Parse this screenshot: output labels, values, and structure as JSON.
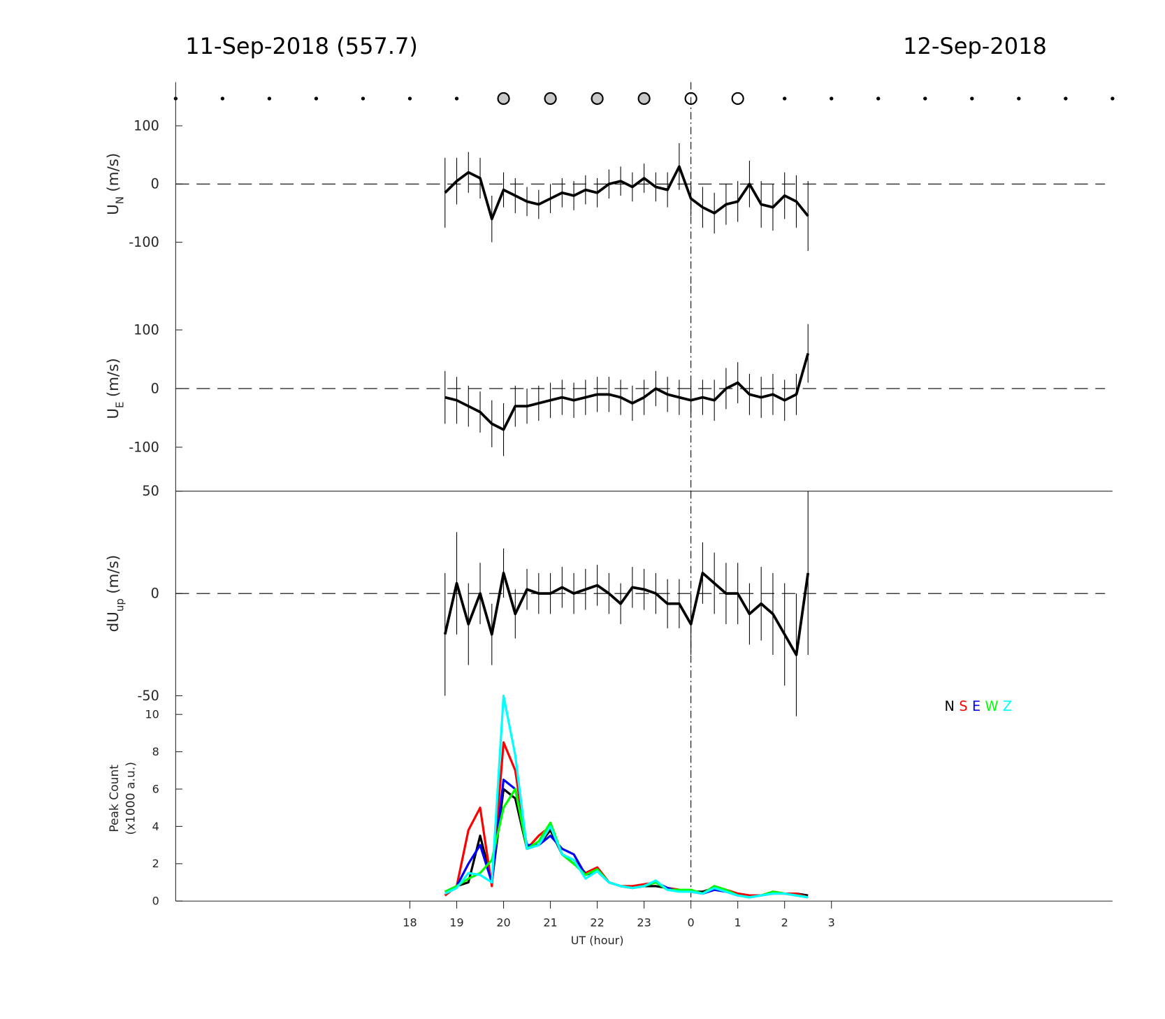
{
  "header": {
    "left": "11-Sep-2018 (557.7)",
    "right": "12-Sep-2018"
  },
  "sky_markers": {
    "x": [
      13,
      14,
      15,
      16,
      17,
      18,
      19,
      20,
      21,
      22,
      23,
      24,
      25,
      26,
      27,
      28,
      29,
      30,
      31,
      32,
      33
    ],
    "kind": [
      "dot",
      "dot",
      "dot",
      "dot",
      "dot",
      "dot",
      "dot",
      "gray",
      "gray",
      "gray",
      "gray",
      "open",
      "open",
      "dot",
      "dot",
      "dot",
      "dot",
      "dot",
      "dot",
      "dot",
      "dot"
    ]
  },
  "chart_data": [
    {
      "type": "errorbar-line",
      "ylabel": {
        "text": "U",
        "subscript": "N",
        "unit": "(m/s)"
      },
      "xlim": [
        13,
        33
      ],
      "ylim": [
        -175,
        175
      ],
      "yticks": [
        -100,
        0,
        100
      ],
      "ref_line": 0,
      "vline": 24,
      "x": [
        18.75,
        19,
        19.25,
        19.5,
        19.75,
        20,
        20.25,
        20.5,
        20.75,
        21,
        21.25,
        21.5,
        21.75,
        22,
        22.25,
        22.5,
        22.75,
        23,
        23.25,
        23.5,
        23.75,
        24,
        24.25,
        24.5,
        24.75,
        25,
        25.25,
        25.5,
        25.75,
        26,
        26.25,
        26.5
      ],
      "series": [
        {
          "color": "#000000",
          "values": [
            -15,
            5,
            20,
            10,
            -60,
            -10,
            -20,
            -30,
            -35,
            -25,
            -15,
            -20,
            -10,
            -15,
            0,
            5,
            -5,
            10,
            -5,
            -10,
            30,
            -25,
            -40,
            -50,
            -35,
            -30,
            0,
            -35,
            -40,
            -20,
            -30,
            -55
          ],
          "errors": [
            60,
            40,
            35,
            35,
            40,
            30,
            30,
            25,
            25,
            25,
            25,
            25,
            25,
            25,
            25,
            25,
            25,
            25,
            25,
            30,
            40,
            30,
            35,
            35,
            35,
            35,
            40,
            40,
            40,
            40,
            45,
            60
          ]
        }
      ]
    },
    {
      "type": "errorbar-line",
      "ylabel": {
        "text": "U",
        "subscript": "E",
        "unit": "(m/s)"
      },
      "xlim": [
        13,
        33
      ],
      "ylim": [
        -175,
        175
      ],
      "yticks": [
        -100,
        0,
        100
      ],
      "ref_line": 0,
      "vline": 24,
      "x": [
        18.75,
        19,
        19.25,
        19.5,
        19.75,
        20,
        20.25,
        20.5,
        20.75,
        21,
        21.25,
        21.5,
        21.75,
        22,
        22.25,
        22.5,
        22.75,
        23,
        23.25,
        23.5,
        23.75,
        24,
        24.25,
        24.5,
        24.75,
        25,
        25.25,
        25.5,
        25.75,
        26,
        26.25,
        26.5
      ],
      "series": [
        {
          "color": "#000000",
          "values": [
            -15,
            -20,
            -30,
            -40,
            -60,
            -70,
            -30,
            -30,
            -25,
            -20,
            -15,
            -20,
            -15,
            -10,
            -10,
            -15,
            -25,
            -15,
            0,
            -10,
            -15,
            -20,
            -15,
            -20,
            0,
            10,
            -10,
            -15,
            -10,
            -20,
            -10,
            60
          ],
          "errors": [
            45,
            40,
            35,
            35,
            40,
            45,
            35,
            30,
            30,
            30,
            30,
            30,
            30,
            30,
            30,
            30,
            30,
            30,
            30,
            30,
            30,
            30,
            30,
            35,
            35,
            35,
            35,
            35,
            35,
            35,
            35,
            50
          ]
        }
      ]
    },
    {
      "type": "errorbar-line",
      "ylabel": {
        "text": "dU",
        "subscript": "up",
        "unit": "(m/s)"
      },
      "xlim": [
        13,
        33
      ],
      "ylim": [
        -50,
        50
      ],
      "yticks": [
        -50,
        0,
        50
      ],
      "ref_line": 0,
      "vline": 24,
      "x": [
        18.75,
        19,
        19.25,
        19.5,
        19.75,
        20,
        20.25,
        20.5,
        20.75,
        21,
        21.25,
        21.5,
        21.75,
        22,
        22.25,
        22.5,
        22.75,
        23,
        23.25,
        23.5,
        23.75,
        24,
        24.25,
        24.5,
        24.75,
        25,
        25.25,
        25.5,
        25.75,
        26,
        26.25,
        26.5
      ],
      "series": [
        {
          "color": "#000000",
          "values": [
            -20,
            5,
            -15,
            0,
            -20,
            10,
            -10,
            2,
            0,
            0,
            3,
            0,
            2,
            4,
            0,
            -5,
            3,
            2,
            0,
            -5,
            -5,
            -15,
            10,
            5,
            0,
            0,
            -10,
            -5,
            -10,
            -20,
            -30,
            10
          ],
          "errors": [
            30,
            25,
            20,
            15,
            15,
            12,
            12,
            10,
            10,
            10,
            10,
            10,
            10,
            10,
            10,
            10,
            10,
            10,
            10,
            12,
            12,
            15,
            15,
            15,
            15,
            15,
            15,
            18,
            20,
            25,
            30,
            40
          ]
        }
      ]
    },
    {
      "type": "line",
      "ylabel": {
        "text": "Peak Count",
        "unit": "(x1000 a.u.)"
      },
      "xlabel": "UT (hour)",
      "xlim": [
        13,
        33
      ],
      "ylim": [
        0,
        11
      ],
      "yticks": [
        0,
        2,
        4,
        6,
        8,
        10
      ],
      "vline": 24,
      "legend": "upper right",
      "xticks": [
        18,
        19,
        20,
        21,
        22,
        23,
        {
          "value": 24,
          "label": "0"
        },
        {
          "value": 25,
          "label": "1"
        },
        {
          "value": 26,
          "label": "2"
        },
        {
          "value": 27,
          "label": "3"
        }
      ],
      "x": [
        18.75,
        19,
        19.25,
        19.5,
        19.75,
        20,
        20.25,
        20.5,
        20.75,
        21,
        21.25,
        21.5,
        21.75,
        22,
        22.25,
        22.5,
        22.75,
        23,
        23.25,
        23.5,
        23.75,
        24,
        24.25,
        24.5,
        24.75,
        25,
        25.25,
        25.5,
        25.75,
        26,
        26.25,
        26.5
      ],
      "series": [
        {
          "name": "N",
          "color": "#000000",
          "values": [
            0.3,
            0.8,
            1.0,
            3.5,
            1.0,
            6.0,
            5.5,
            2.8,
            3.0,
            3.8,
            2.5,
            2.0,
            1.5,
            1.8,
            1.0,
            0.8,
            0.7,
            0.8,
            0.8,
            0.7,
            0.6,
            0.5,
            0.5,
            0.7,
            0.5,
            0.4,
            0.3,
            0.3,
            0.5,
            0.4,
            0.4,
            0.3
          ]
        },
        {
          "name": "S",
          "color": "#ff0000",
          "values": [
            0.3,
            0.8,
            3.8,
            5.0,
            0.8,
            8.5,
            7.0,
            2.8,
            3.5,
            4.0,
            2.5,
            2.2,
            1.5,
            1.8,
            1.0,
            0.8,
            0.8,
            0.9,
            1.0,
            0.7,
            0.6,
            0.5,
            0.4,
            0.8,
            0.6,
            0.4,
            0.3,
            0.3,
            0.5,
            0.4,
            0.4,
            0.2
          ]
        },
        {
          "name": "E",
          "color": "#0000ff",
          "values": [
            0.5,
            0.8,
            2.0,
            3.0,
            1.0,
            6.5,
            6.0,
            3.0,
            3.0,
            3.5,
            2.8,
            2.5,
            1.4,
            1.6,
            1.0,
            0.8,
            0.7,
            0.8,
            1.0,
            0.7,
            0.5,
            0.5,
            0.4,
            0.6,
            0.5,
            0.3,
            0.2,
            0.3,
            0.4,
            0.4,
            0.3,
            0.2
          ]
        },
        {
          "name": "W",
          "color": "#00ff00",
          "values": [
            0.5,
            0.8,
            1.2,
            1.5,
            2.2,
            5.0,
            6.0,
            2.8,
            3.2,
            4.2,
            2.5,
            2.0,
            1.4,
            1.7,
            1.0,
            0.8,
            0.7,
            0.8,
            1.0,
            0.6,
            0.6,
            0.6,
            0.4,
            0.8,
            0.6,
            0.3,
            0.2,
            0.3,
            0.5,
            0.4,
            0.3,
            0.2
          ]
        },
        {
          "name": "Z",
          "color": "#00ffff",
          "values": [
            0.4,
            0.7,
            1.5,
            1.4,
            1.0,
            11,
            7.8,
            2.8,
            3.0,
            4.0,
            2.5,
            2.2,
            1.2,
            1.6,
            1.0,
            0.8,
            0.7,
            0.8,
            1.1,
            0.6,
            0.5,
            0.5,
            0.4,
            0.7,
            0.5,
            0.3,
            0.2,
            0.3,
            0.4,
            0.4,
            0.3,
            0.2
          ]
        }
      ]
    }
  ]
}
